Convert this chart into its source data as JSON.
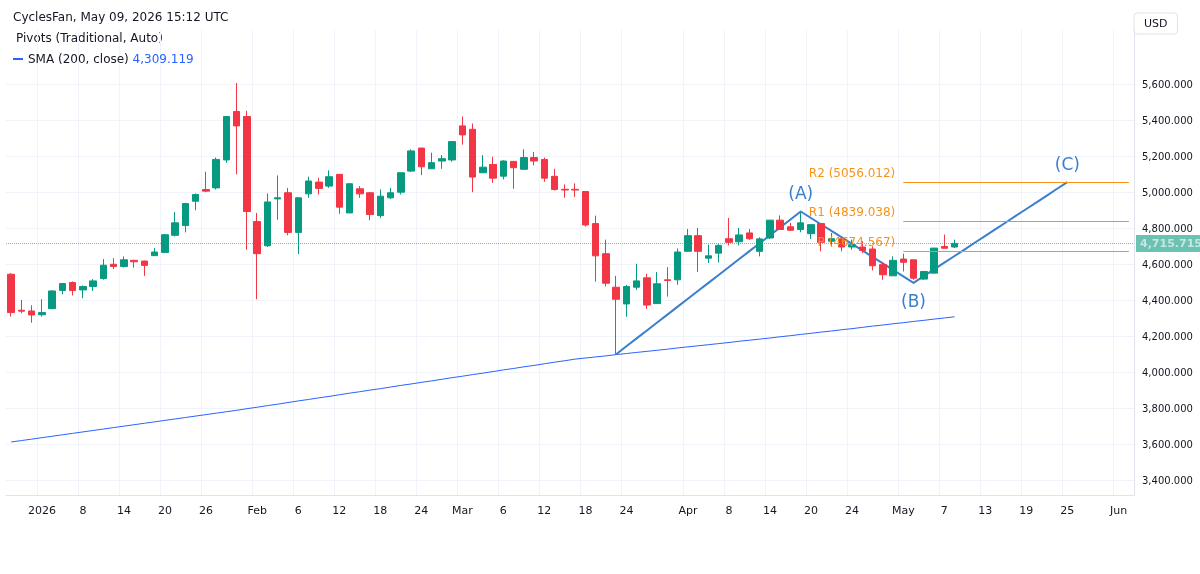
{
  "chart_data": {
    "type": "candlestick",
    "title": "CyclesFan, May 09, 2026 15:12 UTC",
    "ylabel": "USD",
    "annotations": [
      "Pivots (Traditional, Auto)",
      "4,309.119"
    ],
    "categories": [
      null,
      null,
      null,
      "2026",
      null,
      null,
      null,
      "8",
      null,
      null,
      null,
      "14",
      null,
      null,
      null,
      "20",
      null,
      null,
      null,
      "26",
      null,
      null,
      null,
      null,
      "Feb",
      null,
      null,
      null,
      "6",
      null,
      null,
      null,
      "12",
      null,
      null,
      null,
      "18",
      null,
      null,
      null,
      "24",
      null,
      null,
      null,
      "Mar",
      null,
      null,
      null,
      "6",
      null,
      null,
      null,
      "12",
      null,
      null,
      null,
      "18",
      null,
      null,
      null,
      "24",
      null,
      null,
      null,
      null,
      null,
      "Apr",
      null,
      null,
      null,
      "8",
      null,
      null,
      null,
      "14",
      null,
      null,
      null,
      "20",
      null,
      null,
      null,
      "24",
      null,
      null,
      null,
      null,
      "May",
      null,
      null,
      null,
      "7",
      null,
      null,
      null,
      "13",
      null,
      null,
      null,
      "19",
      null,
      null,
      null,
      "25",
      null,
      null,
      null,
      null,
      "Jun",
      null
    ],
    "ohlc": [
      [
        4545,
        4551,
        4310,
        4332
      ],
      [
        4345,
        4402,
        4328,
        4340
      ],
      [
        4341,
        4373,
        4276,
        4319
      ],
      [
        4320,
        4406,
        4310,
        4332
      ],
      [
        4354,
        4456,
        4352,
        4452
      ],
      [
        4455,
        4496,
        4434,
        4493
      ],
      [
        4499,
        4505,
        4427,
        4454
      ],
      [
        4458,
        4482,
        4412,
        4477
      ],
      [
        4477,
        4518,
        4452,
        4508
      ],
      [
        4521,
        4629,
        4515,
        4595
      ],
      [
        4600,
        4634,
        4573,
        4588
      ],
      [
        4588,
        4644,
        4582,
        4625
      ],
      [
        4622,
        4625,
        4582,
        4614
      ],
      [
        4618,
        4620,
        4536,
        4594
      ],
      [
        4648,
        4690,
        4646,
        4668
      ],
      [
        4666,
        4768,
        4662,
        4764
      ],
      [
        4761,
        4889,
        4755,
        4830
      ],
      [
        4815,
        4941,
        4777,
        4937
      ],
      [
        4950,
        4993,
        4900,
        4987
      ],
      [
        5015,
        5114,
        5000,
        5006
      ],
      [
        5024,
        5192,
        5015,
        5182
      ],
      [
        5179,
        5423,
        5163,
        5420
      ],
      [
        5448,
        5606,
        5099,
        5368
      ],
      [
        5420,
        5452,
        4681,
        4893
      ],
      [
        4837,
        4885,
        4406,
        4659
      ],
      [
        4703,
        4993,
        4696,
        4946
      ],
      [
        4963,
        5093,
        4848,
        4969
      ],
      [
        4997,
        5024,
        4761,
        4777
      ],
      [
        4777,
        4969,
        4657,
        4969
      ],
      [
        4991,
        5086,
        4969,
        5062
      ],
      [
        5056,
        5080,
        4987,
        5021
      ],
      [
        5034,
        5121,
        5024,
        5086
      ],
      [
        5099,
        5099,
        4880,
        4917
      ],
      [
        4885,
        5047,
        4885,
        5047
      ],
      [
        5019,
        5034,
        4969,
        4991
      ],
      [
        4997,
        5000,
        4844,
        4876
      ],
      [
        4870,
        5015,
        4857,
        4978
      ],
      [
        4969,
        5024,
        4962,
        4997
      ],
      [
        5000,
        5108,
        4987,
        5108
      ],
      [
        5117,
        5238,
        5114,
        5229
      ],
      [
        5245,
        5245,
        5095,
        5141
      ],
      [
        5130,
        5219,
        5130,
        5164
      ],
      [
        5173,
        5206,
        5130,
        5186
      ],
      [
        5179,
        5281,
        5169,
        5281
      ],
      [
        5368,
        5420,
        5264,
        5318
      ],
      [
        5349,
        5381,
        5000,
        5084
      ],
      [
        5108,
        5206,
        5108,
        5139
      ],
      [
        5154,
        5197,
        5052,
        5078
      ],
      [
        5089,
        5177,
        5071,
        5173
      ],
      [
        5171,
        5171,
        5019,
        5136
      ],
      [
        5127,
        5238,
        5127,
        5192
      ],
      [
        5192,
        5223,
        5149,
        5173
      ],
      [
        5182,
        5192,
        5058,
        5078
      ],
      [
        5088,
        5130,
        5010,
        5015
      ],
      [
        5016,
        5043,
        4969,
        5012
      ],
      [
        5016,
        5049,
        4974,
        5012
      ],
      [
        5004,
        5006,
        4809,
        4818
      ],
      [
        4826,
        4870,
        4504,
        4647
      ],
      [
        4659,
        4737,
        4477,
        4495
      ],
      [
        4473,
        4536,
        4101,
        4406
      ],
      [
        4380,
        4486,
        4309,
        4477
      ],
      [
        4473,
        4603,
        4458,
        4508
      ],
      [
        4525,
        4547,
        4352,
        4374
      ],
      [
        4382,
        4557,
        4380,
        4492
      ],
      [
        4514,
        4584,
        4421,
        4510
      ],
      [
        4514,
        4688,
        4486,
        4668
      ],
      [
        4672,
        4796,
        4672,
        4759
      ],
      [
        4759,
        4802,
        4557,
        4672
      ],
      [
        4634,
        4709,
        4607,
        4647
      ],
      [
        4662,
        4712,
        4610,
        4705
      ],
      [
        4742,
        4857,
        4705,
        4722
      ],
      [
        4725,
        4802,
        4705,
        4763
      ],
      [
        4774,
        4796,
        4735,
        4742
      ],
      [
        4672,
        4750,
        4644,
        4741
      ],
      [
        4746,
        4845,
        4740,
        4845
      ],
      [
        4845,
        4871,
        4790,
        4793
      ],
      [
        4808,
        4830,
        4786,
        4789
      ],
      [
        4793,
        4889,
        4778,
        4830
      ],
      [
        4770,
        4820,
        4741,
        4820
      ],
      [
        4826,
        4826,
        4672,
        4722
      ],
      [
        4728,
        4774,
        4700,
        4742
      ],
      [
        4741,
        4741,
        4672,
        4696
      ],
      [
        4696,
        4737,
        4681,
        4709
      ],
      [
        4696,
        4728,
        4663,
        4677
      ],
      [
        4685,
        4700,
        4566,
        4592
      ],
      [
        4598,
        4611,
        4514,
        4542
      ],
      [
        4536,
        4644,
        4536,
        4622
      ],
      [
        4629,
        4659,
        4560,
        4611
      ],
      [
        4625,
        4625,
        4514,
        4523
      ],
      [
        4518,
        4560,
        4514,
        4560
      ],
      [
        4551,
        4690,
        4551,
        4690
      ],
      [
        4699,
        4765,
        4689,
        4689
      ],
      [
        4696,
        4737,
        4690,
        4716
      ],
      null,
      null,
      null,
      null,
      null,
      null,
      null,
      null,
      null,
      null,
      null,
      null,
      null,
      null,
      null,
      null,
      null
    ],
    "series": [
      {
        "name": "SMA (200, close)",
        "type": "line",
        "color": "#2962ff",
        "values": [
          3614,
          3622,
          3630,
          3638,
          3646,
          3654,
          3662,
          3670,
          3678,
          3686,
          3694,
          3702,
          3710,
          3718,
          3726,
          3734,
          3742,
          3750,
          3758,
          3766,
          3774,
          3782,
          3790,
          3799,
          3807,
          3816,
          3824,
          3833,
          3842,
          3850,
          3859,
          3867,
          3876,
          3885,
          3893,
          3902,
          3910,
          3919,
          3928,
          3936,
          3945,
          3953,
          3962,
          3971,
          3979,
          3988,
          3996,
          4005,
          4014,
          4022,
          4031,
          4039,
          4048,
          4057,
          4065,
          4074,
          4080,
          4086,
          4092,
          4099,
          4105,
          4111,
          4117,
          4123,
          4129,
          4136,
          4142,
          4148,
          4154,
          4160,
          4166,
          4173,
          4179,
          4185,
          4191,
          4198,
          4204,
          4211,
          4217,
          4224,
          4230,
          4237,
          4243,
          4250,
          4257,
          4263,
          4270,
          4276,
          4283,
          4289,
          4296,
          4302,
          4309,
          null,
          null,
          null,
          null,
          null,
          null,
          null,
          null,
          null,
          null,
          null,
          null,
          null,
          null,
          null,
          null,
          null
        ]
      },
      {
        "type": "line",
        "color": "#3b7fcb",
        "values": [
          null,
          null,
          null,
          null,
          null,
          null,
          null,
          null,
          null,
          null,
          null,
          null,
          null,
          null,
          null,
          null,
          null,
          null,
          null,
          null,
          null,
          null,
          null,
          null,
          null,
          null,
          null,
          null,
          null,
          null,
          null,
          null,
          null,
          null,
          null,
          null,
          null,
          null,
          null,
          null,
          null,
          null,
          null,
          null,
          null,
          null,
          null,
          null,
          null,
          null,
          null,
          null,
          null,
          null,
          null,
          null,
          null,
          null,
          null,
          4101,
          4145,
          4189,
          4233,
          4277,
          4321,
          4365,
          4409,
          4453,
          4497,
          4541,
          4585,
          4629,
          4673,
          4717,
          4761,
          4805,
          4849,
          4893,
          4857,
          4821,
          4785,
          4749,
          4713,
          4677,
          4641,
          4605,
          4569,
          4533,
          4497,
          4534,
          4572,
          4609,
          4646,
          4683,
          4721,
          4758,
          4795,
          4832,
          4870,
          4907,
          4944,
          4981,
          5019,
          5056,
          null,
          null,
          null,
          null,
          null,
          null
        ],
        "value_labels": [
          null,
          null,
          null,
          null,
          null,
          null,
          null,
          null,
          null,
          null,
          null,
          null,
          null,
          null,
          null,
          null,
          null,
          null,
          null,
          null,
          null,
          null,
          null,
          null,
          null,
          null,
          null,
          null,
          null,
          null,
          null,
          null,
          null,
          null,
          null,
          null,
          null,
          null,
          null,
          null,
          null,
          null,
          null,
          null,
          null,
          null,
          null,
          null,
          null,
          null,
          null,
          null,
          null,
          null,
          null,
          null,
          null,
          null,
          null,
          null,
          null,
          null,
          null,
          null,
          null,
          null,
          null,
          null,
          null,
          null,
          null,
          null,
          null,
          null,
          null,
          null,
          null,
          "(A)",
          null,
          null,
          null,
          null,
          null,
          null,
          null,
          null,
          null,
          null,
          "(B)",
          null,
          null,
          null,
          null,
          null,
          null,
          null,
          null,
          null,
          null,
          null,
          null,
          null,
          null,
          "(C)",
          null,
          null,
          null,
          null,
          null,
          null
        ]
      }
    ],
    "ref_lines": [
      {
        "axis": "y",
        "value": 5056.012,
        "label": "R2 (5056.012)",
        "color": "#f7931a"
      },
      {
        "axis": "y",
        "value": 4839.038,
        "label": "R1 (4839.038)",
        "color": "#f7931a"
      },
      {
        "axis": "y",
        "value": 4674.567,
        "label": "P (4674.567)",
        "color": "#f7931a"
      },
      {
        "axis": "y",
        "value": 4715.715,
        "label": "4,715.715",
        "color": "#089981",
        "line_style": "dotted"
      }
    ],
    "ylim": [
      3320,
      5900
    ],
    "yticks": [
      {
        "value": 3400,
        "label": "3,400.000"
      },
      {
        "value": 3600,
        "label": "3,600.000"
      },
      {
        "value": 3800,
        "label": "3,800.000"
      },
      {
        "value": 4000,
        "label": "4,000.000"
      },
      {
        "value": 4200,
        "label": "4,200.000"
      },
      {
        "value": 4400,
        "label": "4,400.000"
      },
      {
        "value": 4600,
        "label": "4,600.000"
      },
      {
        "value": 4800,
        "label": "4,800.000"
      },
      {
        "value": 5000,
        "label": "5,000.000"
      },
      {
        "value": 5200,
        "label": "5,200.000"
      },
      {
        "value": 5400,
        "label": "5,400.000"
      },
      {
        "value": 5600,
        "label": "5,600.000"
      }
    ],
    "grid": true,
    "legend": "top left",
    "marker": "none"
  }
}
